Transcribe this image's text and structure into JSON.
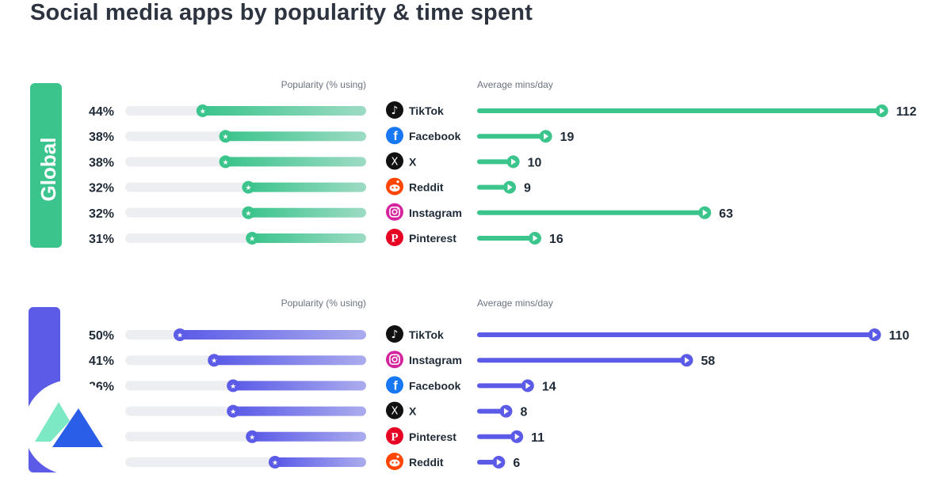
{
  "title": "Social media apps by popularity & time spent",
  "colors": {
    "global": "#3cc48d",
    "second": "#5b5be8",
    "track": "#eceef1",
    "logo_light": "#7de8c4",
    "logo_dark": "#2a5de8"
  },
  "chart_data": [
    {
      "type": "bar",
      "panel_label": "Global",
      "color": "#3cc48d",
      "popularity_header": "Popularity (% using)",
      "mins_header": "Average mins/day",
      "popularity_max": 100,
      "mins_max": 112,
      "rows": [
        {
          "app": "TikTok",
          "icon": "tiktok-icon",
          "popularity": 44,
          "popularity_label": "44%",
          "mins": 112
        },
        {
          "app": "Facebook",
          "icon": "facebook-icon",
          "popularity": 38,
          "popularity_label": "38%",
          "mins": 19
        },
        {
          "app": "X",
          "icon": "x-icon",
          "popularity": 38,
          "popularity_label": "38%",
          "mins": 10
        },
        {
          "app": "Reddit",
          "icon": "reddit-icon",
          "popularity": 32,
          "popularity_label": "32%",
          "mins": 9
        },
        {
          "app": "Instagram",
          "icon": "instagram-icon",
          "popularity": 32,
          "popularity_label": "32%",
          "mins": 63
        },
        {
          "app": "Pinterest",
          "icon": "pinterest-icon",
          "popularity": 31,
          "popularity_label": "31%",
          "mins": 16
        }
      ]
    },
    {
      "type": "bar",
      "panel_label": "",
      "color": "#5b5be8",
      "popularity_header": "Popularity (% using)",
      "mins_header": "Average mins/day",
      "popularity_max": 100,
      "mins_max": 112,
      "rows": [
        {
          "app": "TikTok",
          "icon": "tiktok-icon",
          "popularity": 50,
          "popularity_label": "50%",
          "mins": 110
        },
        {
          "app": "Instagram",
          "icon": "instagram-icon",
          "popularity": 41,
          "popularity_label": "41%",
          "mins": 58
        },
        {
          "app": "Facebook",
          "icon": "facebook-icon",
          "popularity": 36,
          "popularity_label": "36%",
          "mins": 14
        },
        {
          "app": "X",
          "icon": "x-icon",
          "popularity": 36,
          "popularity_label": "",
          "mins": 8
        },
        {
          "app": "Pinterest",
          "icon": "pinterest-icon",
          "popularity": 31,
          "popularity_label": "",
          "mins": 11
        },
        {
          "app": "Reddit",
          "icon": "reddit-icon",
          "popularity": 25,
          "popularity_label": "",
          "mins": 6
        }
      ]
    }
  ]
}
